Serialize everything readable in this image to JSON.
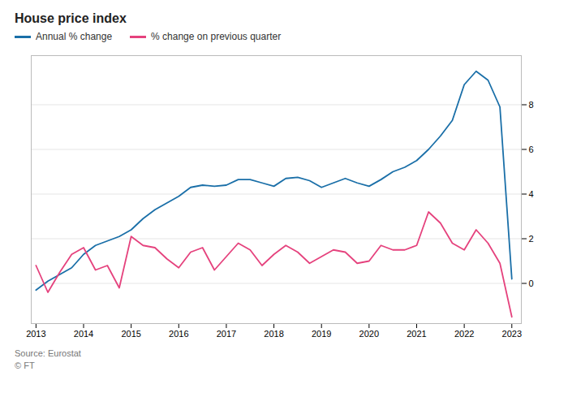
{
  "chart_data": {
    "type": "line",
    "title": "House price index",
    "annotations": [
      "Source: Eurostat",
      "© FT"
    ],
    "x": [
      2013.0,
      2013.25,
      2013.5,
      2013.75,
      2014.0,
      2014.25,
      2014.5,
      2014.75,
      2015.0,
      2015.25,
      2015.5,
      2015.75,
      2016.0,
      2016.25,
      2016.5,
      2016.75,
      2017.0,
      2017.25,
      2017.5,
      2017.75,
      2018.0,
      2018.25,
      2018.5,
      2018.75,
      2019.0,
      2019.25,
      2019.5,
      2019.75,
      2020.0,
      2020.25,
      2020.5,
      2020.75,
      2021.0,
      2021.25,
      2021.5,
      2021.75,
      2022.0,
      2022.25,
      2022.5,
      2022.75,
      2023.0
    ],
    "series": [
      {
        "name": "Annual % change",
        "color": "#1a6fa8",
        "values": [
          -0.3,
          0.1,
          0.4,
          0.7,
          1.3,
          1.7,
          1.9,
          2.1,
          2.4,
          2.9,
          3.3,
          3.6,
          3.9,
          4.3,
          4.4,
          4.35,
          4.4,
          4.65,
          4.65,
          4.5,
          4.35,
          4.7,
          4.75,
          4.6,
          4.3,
          4.5,
          4.7,
          4.5,
          4.35,
          4.65,
          5.0,
          5.2,
          5.5,
          6.0,
          6.6,
          7.3,
          8.9,
          9.5,
          9.1,
          7.9,
          0.2
        ]
      },
      {
        "name": "% change on previous quarter",
        "color": "#e5427d",
        "values": [
          0.8,
          -0.4,
          0.5,
          1.3,
          1.6,
          0.6,
          0.8,
          -0.2,
          2.1,
          1.7,
          1.6,
          1.1,
          0.7,
          1.4,
          1.6,
          0.6,
          1.2,
          1.8,
          1.5,
          0.8,
          1.3,
          1.7,
          1.4,
          0.9,
          1.2,
          1.5,
          1.4,
          0.9,
          1.0,
          1.7,
          1.5,
          1.5,
          1.7,
          3.2,
          2.7,
          1.8,
          1.5,
          2.4,
          1.8,
          0.9,
          -1.5
        ]
      }
    ],
    "xlim": [
      2012.9,
      2023.2
    ],
    "xticks": [
      2013,
      2014,
      2015,
      2016,
      2017,
      2018,
      2019,
      2020,
      2021,
      2022,
      2023
    ],
    "ylim": [
      -1.8,
      10.2
    ],
    "yticks": [
      0,
      2,
      4,
      6,
      8
    ],
    "grid": true,
    "legend": "upper left"
  }
}
